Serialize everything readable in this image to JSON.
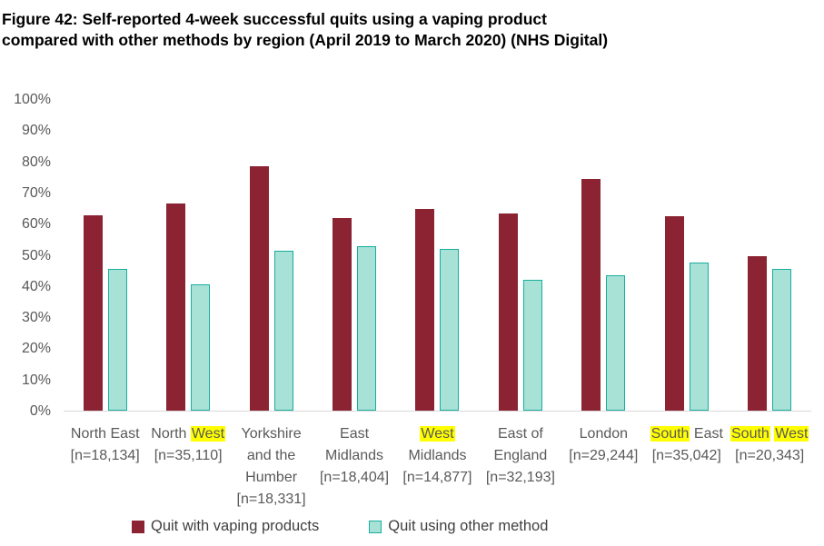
{
  "title_lines": [
    "Figure 42: Self-reported 4-week successful quits using a vaping product",
    "compared with other methods by region (April 2019 to March 2020) (NHS Digital)"
  ],
  "colors": {
    "vaping_bar": "#8B2333",
    "other_bar_fill": "#A8E1D6",
    "other_bar_border": "#18AE9F",
    "highlight": "#FFFF00",
    "axis_text": "#595959",
    "baseline": "#D9D9D9",
    "legend_text": "#404040",
    "title_text": "#000000"
  },
  "chart_data": {
    "type": "bar",
    "title": "Figure 42: Self-reported 4-week successful quits using a vaping product compared with other methods by region (April 2019 to March 2020) (NHS Digital)",
    "ylabel": "",
    "xlabel": "",
    "ylim": [
      0,
      100
    ],
    "grid": false,
    "legend_position": "bottom",
    "y_ticks": [
      "0%",
      "10%",
      "20%",
      "30%",
      "40%",
      "50%",
      "60%",
      "70%",
      "80%",
      "90%",
      "100%"
    ],
    "categories": [
      {
        "name": "North East",
        "n": "[n=18,134]",
        "lines": [
          [
            {
              "t": "North East"
            }
          ],
          [
            {
              "t": "[n=18,134]"
            }
          ]
        ]
      },
      {
        "name": "North West",
        "n": "[n=35,110]",
        "lines": [
          [
            {
              "t": "North "
            },
            {
              "t": "West",
              "hl": true
            }
          ],
          [
            {
              "t": "[n=35,110]"
            }
          ]
        ]
      },
      {
        "name": "Yorkshire and the Humber",
        "n": "[n=18,331]",
        "lines": [
          [
            {
              "t": "Yorkshire"
            }
          ],
          [
            {
              "t": "and the"
            }
          ],
          [
            {
              "t": "Humber"
            }
          ],
          [
            {
              "t": "[n=18,331]"
            }
          ]
        ]
      },
      {
        "name": "East Midlands",
        "n": "[n=18,404]",
        "lines": [
          [
            {
              "t": "East"
            }
          ],
          [
            {
              "t": "Midlands"
            }
          ],
          [
            {
              "t": "[n=18,404]"
            }
          ]
        ]
      },
      {
        "name": "West Midlands",
        "n": "[n=14,877]",
        "lines": [
          [
            {
              "t": "West",
              "hl": true
            }
          ],
          [
            {
              "t": "Midlands"
            }
          ],
          [
            {
              "t": "[n=14,877]"
            }
          ]
        ]
      },
      {
        "name": "East of England",
        "n": "[n=32,193]",
        "lines": [
          [
            {
              "t": "East of"
            }
          ],
          [
            {
              "t": "England"
            }
          ],
          [
            {
              "t": "[n=32,193]"
            }
          ]
        ]
      },
      {
        "name": "London",
        "n": "[n=29,244]",
        "lines": [
          [
            {
              "t": "London"
            }
          ],
          [
            {
              "t": "[n=29,244]"
            }
          ]
        ]
      },
      {
        "name": "South East",
        "n": "[n=35,042]",
        "lines": [
          [
            {
              "t": "South",
              "hl": true
            },
            {
              "t": " East"
            }
          ],
          [
            {
              "t": "[n=35,042]"
            }
          ]
        ]
      },
      {
        "name": "South West",
        "n": "[n=20,343]",
        "lines": [
          [
            {
              "t": "South",
              "hl": true
            },
            {
              "t": " "
            },
            {
              "t": "West",
              "hl": true
            }
          ],
          [
            {
              "t": "[n=20,343]"
            }
          ]
        ]
      }
    ],
    "series": [
      {
        "name": "Quit with vaping products",
        "color": "#8B2333",
        "values": [
          62.7,
          66.5,
          78.4,
          61.8,
          64.6,
          63.3,
          74.3,
          62.5,
          49.5
        ]
      },
      {
        "name": "Quit using other method",
        "color": "#A8E1D6",
        "border_color": "#18AE9F",
        "values": [
          45.6,
          40.6,
          51.3,
          52.9,
          52.0,
          42.1,
          43.5,
          47.6,
          45.6
        ]
      }
    ]
  }
}
